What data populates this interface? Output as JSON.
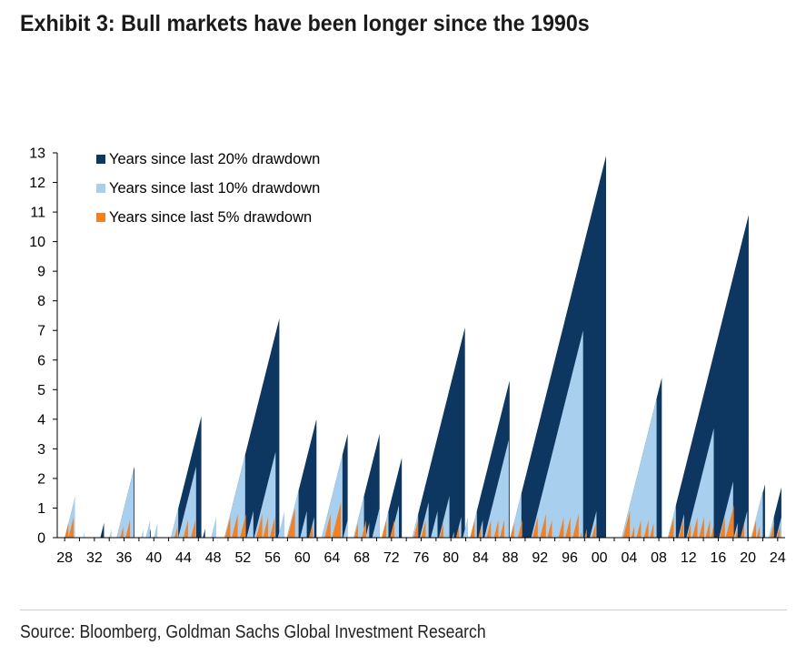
{
  "title": "Exhibit 3: Bull markets have been longer since the 1990s",
  "source": "Source: Bloomberg, Goldman Sachs Global Investment Research",
  "chart_data": {
    "type": "area",
    "ylim": [
      0,
      13
    ],
    "y_ticks": [
      0,
      1,
      2,
      3,
      4,
      5,
      6,
      7,
      8,
      9,
      10,
      11,
      12,
      13
    ],
    "x_ticks": [
      "28",
      "32",
      "36",
      "40",
      "44",
      "48",
      "52",
      "56",
      "60",
      "64",
      "68",
      "72",
      "76",
      "80",
      "84",
      "88",
      "92",
      "96",
      "00",
      "04",
      "08",
      "12",
      "16",
      "20",
      "24"
    ],
    "x_tick_years": [
      1928,
      1932,
      1936,
      1940,
      1944,
      1948,
      1952,
      1956,
      1960,
      1964,
      1968,
      1972,
      1976,
      1980,
      1984,
      1988,
      1992,
      1996,
      2000,
      2004,
      2008,
      2012,
      2016,
      2020,
      2024
    ],
    "legend_position": "top-left",
    "colors": {
      "dd20": "#0d3660",
      "dd10": "#a9cfee",
      "dd5": "#f08127"
    },
    "series": [
      {
        "name": "Years since last 20% drawdown",
        "color": "#0d3660",
        "cycles": [
          [
            1932.8,
            1933.3
          ],
          [
            1935.0,
            1937.4
          ],
          [
            1939.3,
            1939.6
          ],
          [
            1942.3,
            1946.4
          ],
          [
            1946.6,
            1946.9
          ],
          [
            1949.5,
            1956.9
          ],
          [
            1957.9,
            1961.9
          ],
          [
            1962.6,
            1966.1
          ],
          [
            1966.9,
            1970.4
          ],
          [
            1970.7,
            1973.4
          ],
          [
            1974.8,
            1981.9
          ],
          [
            1982.6,
            1987.9
          ],
          [
            1988.0,
            2000.9
          ],
          [
            2003.0,
            2008.4
          ],
          [
            2009.2,
            2020.1
          ],
          [
            2020.5,
            2022.3
          ],
          [
            2022.8,
            2024.5
          ]
        ]
      },
      {
        "name": "Years since last 10% drawdown",
        "color": "#a9cfee",
        "cycles": [
          [
            1928.0,
            1929.4
          ],
          [
            1930.5,
            1930.7
          ],
          [
            1934.0,
            1934.3
          ],
          [
            1935.0,
            1937.3
          ],
          [
            1938.3,
            1938.6
          ],
          [
            1938.9,
            1939.5
          ],
          [
            1940.0,
            1940.5
          ],
          [
            1942.3,
            1943.3
          ],
          [
            1943.3,
            1945.7
          ],
          [
            1947.7,
            1948.4
          ],
          [
            1949.5,
            1952.3
          ],
          [
            1952.5,
            1953.4
          ],
          [
            1953.5,
            1956.4
          ],
          [
            1956.7,
            1957.6
          ],
          [
            1957.9,
            1959.5
          ],
          [
            1959.7,
            1960.6
          ],
          [
            1960.9,
            1961.6
          ],
          [
            1962.6,
            1965.4
          ],
          [
            1965.5,
            1966.1
          ],
          [
            1966.9,
            1968.3
          ],
          [
            1968.5,
            1969.0
          ],
          [
            1969.4,
            1970.4
          ],
          [
            1970.7,
            1971.6
          ],
          [
            1971.9,
            1973.0
          ],
          [
            1974.8,
            1975.6
          ],
          [
            1975.8,
            1977.0
          ],
          [
            1977.3,
            1978.2
          ],
          [
            1978.4,
            1979.8
          ],
          [
            1980.2,
            1980.4
          ],
          [
            1980.7,
            1981.4
          ],
          [
            1981.6,
            1982.3
          ],
          [
            1982.6,
            1983.5
          ],
          [
            1983.7,
            1984.3
          ],
          [
            1984.5,
            1987.8
          ],
          [
            1988.0,
            1989.5
          ],
          [
            1990.8,
            1997.8
          ],
          [
            1998.7,
            1999.6
          ],
          [
            2003.0,
            2007.7
          ],
          [
            2009.2,
            2010.3
          ],
          [
            2010.6,
            2011.4
          ],
          [
            2011.7,
            2015.4
          ],
          [
            2016.1,
            2018.0
          ],
          [
            2018.1,
            2018.6
          ],
          [
            2019.0,
            2019.9
          ],
          [
            2020.4,
            2022.0
          ],
          [
            2022.8,
            2023.5
          ],
          [
            2023.8,
            2024.5
          ]
        ]
      },
      {
        "name": "Years since last 5% drawdown",
        "color": "#f08127",
        "cycles": [
          [
            1928.0,
            1928.5
          ],
          [
            1928.5,
            1929.2
          ],
          [
            1935.5,
            1935.9
          ],
          [
            1936.2,
            1936.8
          ],
          [
            1942.8,
            1943.2
          ],
          [
            1944.0,
            1944.6
          ],
          [
            1945.0,
            1945.6
          ],
          [
            1949.6,
            1950.3
          ],
          [
            1950.5,
            1951.3
          ],
          [
            1951.6,
            1952.4
          ],
          [
            1953.8,
            1954.6
          ],
          [
            1954.7,
            1955.4
          ],
          [
            1955.6,
            1956.3
          ],
          [
            1958.0,
            1959.0
          ],
          [
            1960.9,
            1961.4
          ],
          [
            1963.0,
            1963.8
          ],
          [
            1964.0,
            1965.2
          ],
          [
            1967.0,
            1967.5
          ],
          [
            1968.0,
            1968.6
          ],
          [
            1970.7,
            1971.3
          ],
          [
            1971.8,
            1972.4
          ],
          [
            1975.0,
            1975.6
          ],
          [
            1976.0,
            1976.6
          ],
          [
            1978.5,
            1979.0
          ],
          [
            1980.7,
            1981.1
          ],
          [
            1982.6,
            1983.2
          ],
          [
            1983.7,
            1984.1
          ],
          [
            1984.8,
            1985.4
          ],
          [
            1985.8,
            1986.4
          ],
          [
            1986.6,
            1987.2
          ],
          [
            1988.0,
            1988.5
          ],
          [
            1989.0,
            1989.6
          ],
          [
            1991.0,
            1991.7
          ],
          [
            1992.0,
            1992.8
          ],
          [
            1993.0,
            1993.6
          ],
          [
            1994.5,
            1995.2
          ],
          [
            1995.4,
            1996.1
          ],
          [
            1996.4,
            1997.2
          ],
          [
            1997.4,
            1997.6
          ],
          [
            1998.0,
            1998.3
          ],
          [
            1999.0,
            1999.5
          ],
          [
            2003.2,
            2004.1
          ],
          [
            2004.3,
            2004.7
          ],
          [
            2005.0,
            2005.6
          ],
          [
            2006.0,
            2006.6
          ],
          [
            2006.8,
            2007.3
          ],
          [
            2009.3,
            2010.0
          ],
          [
            2010.7,
            2011.3
          ],
          [
            2011.8,
            2012.3
          ],
          [
            2012.5,
            2013.2
          ],
          [
            2013.4,
            2014.1
          ],
          [
            2014.3,
            2014.9
          ],
          [
            2015.0,
            2015.4
          ],
          [
            2016.2,
            2016.9
          ],
          [
            2017.0,
            2018.1
          ],
          [
            2018.3,
            2018.6
          ],
          [
            2019.0,
            2019.5
          ],
          [
            2020.5,
            2021.1
          ],
          [
            2021.2,
            2021.6
          ],
          [
            2023.0,
            2023.5
          ],
          [
            2023.9,
            2024.3
          ]
        ]
      }
    ]
  }
}
